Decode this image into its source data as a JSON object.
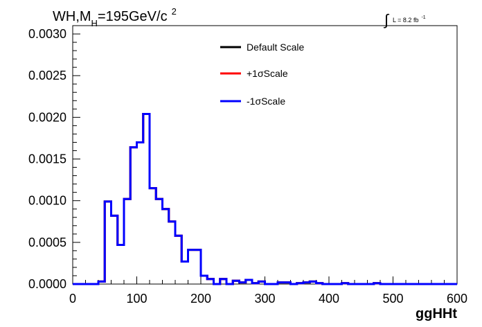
{
  "title": {
    "main": "WH,M",
    "sub": "H",
    "rest": "=195GeV/c",
    "sup": "2"
  },
  "lumi": {
    "integral": "∫",
    "text": "L = 8.2 fb",
    "sup": "-1"
  },
  "chart_data": {
    "type": "line",
    "step": true,
    "xlabel": "ggHHt",
    "ylabel": "",
    "xlim": [
      0,
      600
    ],
    "ylim": [
      0,
      0.0031
    ],
    "x_ticks": [
      "0",
      "100",
      "200",
      "300",
      "400",
      "500",
      "600"
    ],
    "y_ticks": [
      "0.0000",
      "0.0005",
      "0.0010",
      "0.0015",
      "0.0020",
      "0.0025",
      "0.0030"
    ],
    "bin_edges": [
      0,
      10,
      20,
      30,
      40,
      50,
      60,
      70,
      80,
      90,
      100,
      110,
      120,
      130,
      140,
      150,
      160,
      170,
      180,
      190,
      200,
      210,
      220,
      230,
      240,
      250,
      260,
      270,
      280,
      290,
      300,
      310,
      320,
      330,
      340,
      350,
      360,
      370,
      380,
      390,
      400,
      410,
      420,
      430,
      440,
      450,
      460,
      470,
      480,
      490,
      500,
      510,
      520,
      530,
      540,
      550,
      560,
      570,
      580,
      590,
      600
    ],
    "legend_position": "top-right",
    "series": [
      {
        "name": "Default Scale",
        "color": "#000000",
        "values": [
          0,
          0,
          0,
          0,
          3e-05,
          0.00099,
          0.00082,
          0.00047,
          0.00102,
          0.00164,
          0.0017,
          0.00204,
          0.00115,
          0.00102,
          0.0009,
          0.00075,
          0.00058,
          0.00027,
          0.00041,
          0.00041,
          0.0001,
          6e-05,
          0.0,
          6e-05,
          0.0,
          4e-05,
          2e-05,
          5e-05,
          1e-05,
          3e-05,
          0,
          0,
          2e-05,
          2e-05,
          0,
          1e-05,
          2e-05,
          3e-05,
          1e-05,
          0,
          0,
          0,
          1e-05,
          0,
          0,
          0,
          0,
          1e-05,
          0,
          0,
          0,
          0,
          0,
          0,
          0,
          0,
          0,
          0,
          0,
          0
        ]
      },
      {
        "name": "+1σScale",
        "color": "#ff0000",
        "values": [
          0,
          0,
          0,
          0,
          3e-05,
          0.00099,
          0.00082,
          0.00047,
          0.00102,
          0.00164,
          0.0017,
          0.00204,
          0.00115,
          0.00102,
          0.0009,
          0.00075,
          0.00058,
          0.00027,
          0.00041,
          0.00041,
          0.0001,
          6e-05,
          0.0,
          6e-05,
          0.0,
          4e-05,
          2e-05,
          5e-05,
          1e-05,
          3e-05,
          0,
          0,
          2e-05,
          2e-05,
          0,
          1e-05,
          2e-05,
          3e-05,
          1e-05,
          0,
          0,
          0,
          1e-05,
          0,
          0,
          0,
          0,
          1e-05,
          0,
          0,
          0,
          0,
          0,
          0,
          0,
          0,
          0,
          0,
          0,
          0
        ]
      },
      {
        "name": "-1σScale",
        "color": "#0000ff",
        "values": [
          0,
          0,
          0,
          0,
          3e-05,
          0.00099,
          0.00082,
          0.00047,
          0.00102,
          0.00164,
          0.0017,
          0.00204,
          0.00115,
          0.00102,
          0.0009,
          0.00075,
          0.00058,
          0.00027,
          0.00041,
          0.00041,
          0.0001,
          6e-05,
          0.0,
          6e-05,
          0.0,
          4e-05,
          2e-05,
          5e-05,
          1e-05,
          3e-05,
          0,
          0,
          2e-05,
          2e-05,
          0,
          1e-05,
          2e-05,
          3e-05,
          1e-05,
          0,
          0,
          0,
          1e-05,
          0,
          0,
          0,
          0,
          1e-05,
          0,
          0,
          0,
          0,
          0,
          0,
          0,
          0,
          0,
          0,
          0,
          0
        ]
      }
    ]
  }
}
